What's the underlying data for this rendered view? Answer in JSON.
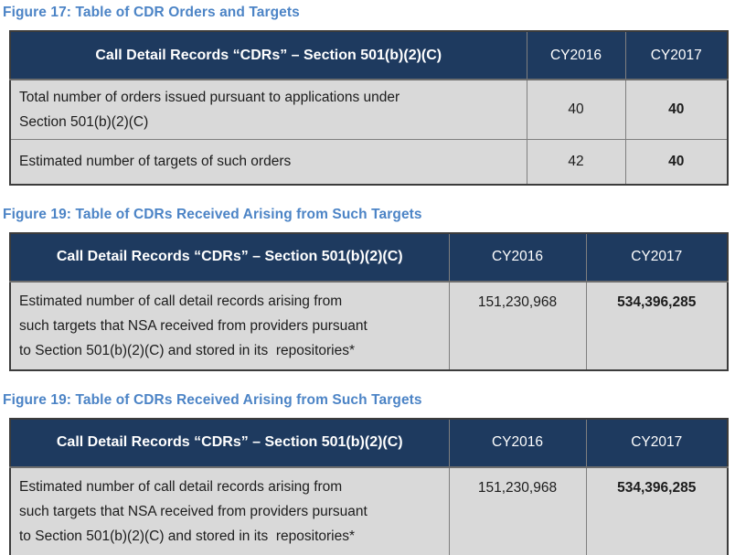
{
  "colors": {
    "title_blue": "#4c84c6",
    "header_navy": "#1e3a5f",
    "row_gray": "#d9d9d9",
    "header_text": "#ffffff",
    "body_text": "#1c1c1c",
    "inner_border": "#7f7f7f",
    "outer_border": "#3c3c3c"
  },
  "figures": [
    {
      "title": "Figure 17: Table of CDR Orders and Targets",
      "table": {
        "columns": [
          "Call Detail Records “CDRs” – Section 501(b)(2)(C)",
          "CY2016",
          "CY2017"
        ],
        "rows": [
          {
            "label": "Total number of orders issued pursuant to applications under\nSection 501(b)(2)(C)",
            "cy2016": "40",
            "cy2017": "40"
          },
          {
            "label": "Estimated number of targets of such orders",
            "cy2016": "42",
            "cy2017": "40"
          }
        ]
      }
    },
    {
      "title": "Figure 19: Table of CDRs Received Arising from Such Targets",
      "table": {
        "columns": [
          "Call Detail Records “CDRs” – Section 501(b)(2)(C)",
          "CY2016",
          "CY2017"
        ],
        "rows": [
          {
            "label": "Estimated number of call detail records arising from\nsuch targets that NSA received from providers pursuant\nto Section 501(b)(2)(C) and stored in its  repositories*",
            "cy2016": "151,230,968",
            "cy2017": "534,396,285"
          }
        ]
      }
    },
    {
      "title": "Figure 19: Table of CDRs Received Arising from Such Targets",
      "table": {
        "columns": [
          "Call Detail Records “CDRs” – Section 501(b)(2)(C)",
          "CY2016",
          "CY2017"
        ],
        "rows": [
          {
            "label": "Estimated number of call detail records arising from\nsuch targets that NSA received from providers pursuant\nto Section 501(b)(2)(C) and stored in its  repositories*",
            "cy2016": "151,230,968",
            "cy2017": "534,396,285"
          }
        ]
      }
    }
  ]
}
